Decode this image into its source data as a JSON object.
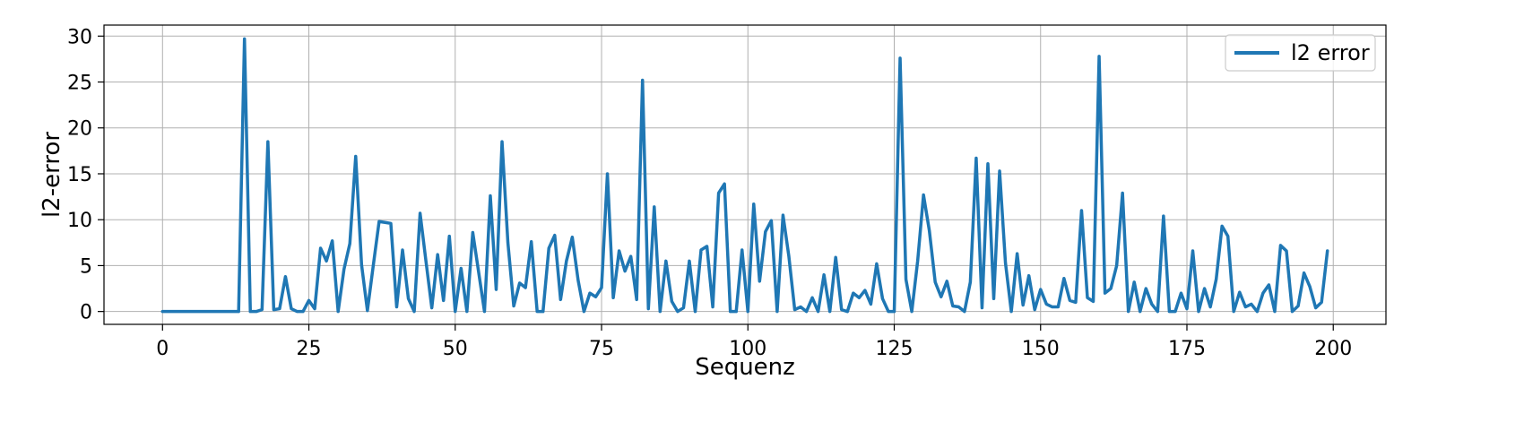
{
  "chart_data": {
    "type": "line",
    "xlabel": "Sequenz",
    "ylabel": "l2-error",
    "xlim": [
      -10,
      209
    ],
    "ylim": [
      -1.4,
      31.2
    ],
    "xticks": [
      0,
      25,
      50,
      75,
      100,
      125,
      150,
      175,
      200
    ],
    "yticks": [
      0,
      5,
      10,
      15,
      20,
      25,
      30
    ],
    "grid": true,
    "legend_position": "top-right",
    "series": [
      {
        "name": "l2 error",
        "color": "#1f77b4",
        "x_start": 0,
        "values": [
          0,
          0,
          0,
          0,
          0,
          0,
          0,
          0,
          0,
          0,
          0,
          0,
          0,
          0,
          29.7,
          0,
          0,
          0.2,
          18.5,
          0.2,
          0.3,
          3.8,
          0.3,
          0,
          0,
          1.2,
          0.3,
          6.9,
          5.5,
          7.7,
          0,
          4.6,
          7.4,
          16.9,
          5.1,
          0.1,
          5,
          9.8,
          9.7,
          9.6,
          0.5,
          6.7,
          1.4,
          0,
          10.7,
          5.5,
          0.4,
          6.2,
          1.2,
          8.2,
          0,
          4.7,
          0,
          8.6,
          4.3,
          0,
          12.6,
          2.4,
          18.5,
          7.5,
          0.6,
          3.1,
          2.6,
          7.6,
          0,
          0,
          6.9,
          8.3,
          1.3,
          5.5,
          8.1,
          3.4,
          0,
          2,
          1.6,
          2.6,
          15,
          1.5,
          6.6,
          4.4,
          6,
          1.3,
          25.2,
          0.3,
          11.4,
          0,
          5.5,
          1.1,
          0,
          0.4,
          5.5,
          0,
          6.7,
          7.1,
          0.5,
          12.9,
          13.9,
          0,
          0,
          6.7,
          0,
          11.7,
          3.3,
          8.7,
          9.9,
          0,
          10.5,
          6,
          0.2,
          0.5,
          0,
          1.5,
          0,
          4,
          0,
          5.9,
          0.2,
          0,
          2,
          1.5,
          2.3,
          0.8,
          5.2,
          1.4,
          0,
          0,
          27.6,
          3.5,
          0,
          5.5,
          12.7,
          8.8,
          3.2,
          1.6,
          3.3,
          0.6,
          0.5,
          0,
          3.2,
          16.7,
          0.4,
          16.1,
          1.4,
          15.3,
          5.3,
          0,
          6.3,
          0.7,
          3.9,
          0.2,
          2.4,
          0.8,
          0.5,
          0.5,
          3.6,
          1.2,
          1,
          11,
          1.5,
          1.1,
          27.8,
          2,
          2.5,
          5,
          12.9,
          0,
          3.2,
          0,
          2.5,
          0.8,
          0,
          10.4,
          0,
          0,
          2,
          0.3,
          6.6,
          0,
          2.5,
          0.5,
          3.5,
          9.3,
          8.2,
          0,
          2.1,
          0.5,
          0.8,
          0,
          2,
          2.9,
          0,
          7.2,
          6.6,
          0,
          0.6,
          4.2,
          2.7,
          0.4,
          1,
          6.6
        ]
      }
    ]
  }
}
